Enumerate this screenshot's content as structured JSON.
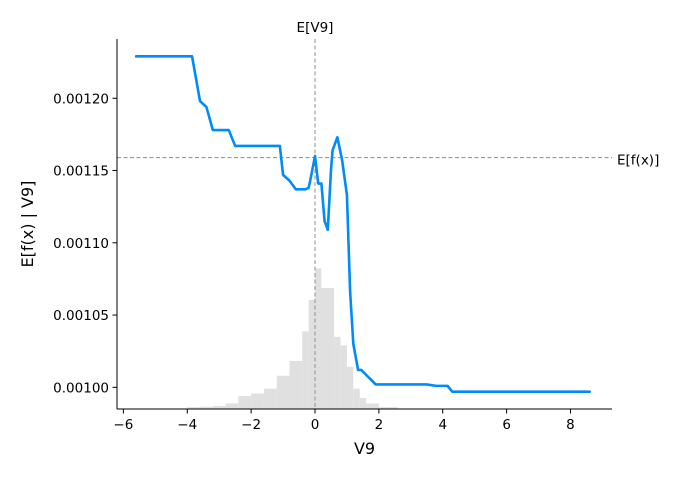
{
  "chart_data": {
    "type": "line",
    "xlabel": "V9",
    "ylabel": "E[f(x) | V9]",
    "xlim": [
      -6.2,
      9.3
    ],
    "ylim": [
      0.000985,
      0.001241
    ],
    "xticks": [
      -6,
      -4,
      -2,
      0,
      2,
      4,
      6,
      8
    ],
    "xtick_labels": [
      "−6",
      "−4",
      "−2",
      "0",
      "2",
      "4",
      "6",
      "8"
    ],
    "yticks": [
      0.001,
      0.00105,
      0.0011,
      0.00115,
      0.0012
    ],
    "ytick_labels": [
      "0.00100",
      "0.00105",
      "0.00110",
      "0.00115",
      "0.00120"
    ],
    "line_color": "#008bfb",
    "hist_color": "#e0e0e0",
    "ref_line_color": "#999999",
    "expected_x": {
      "label": "E[V9]",
      "value": 0.0
    },
    "expected_y": {
      "label": "E[f(x)]",
      "value": 0.001159
    },
    "series": [
      {
        "x": [
          -5.6,
          -3.85,
          -3.6,
          -3.4,
          -3.2,
          -2.7,
          -2.5,
          -2.0,
          -1.1,
          -1.0,
          -0.8,
          -0.6,
          -0.4,
          -0.3,
          -0.2,
          -0.15,
          0.0,
          0.1,
          0.2,
          0.3,
          0.4,
          0.5,
          0.55,
          0.7,
          0.85,
          1.0,
          1.1,
          1.2,
          1.35,
          1.45,
          1.9,
          3.5,
          3.8,
          4.15,
          4.3,
          8.6
        ],
        "y": [
          0.001229,
          0.001229,
          0.001198,
          0.001194,
          0.001178,
          0.001178,
          0.001167,
          0.001167,
          0.001167,
          0.001147,
          0.001143,
          0.001137,
          0.001137,
          0.001137,
          0.001138,
          0.001143,
          0.00116,
          0.001141,
          0.001141,
          0.001115,
          0.001109,
          0.00115,
          0.001164,
          0.001173,
          0.001157,
          0.001133,
          0.001066,
          0.00103,
          0.001012,
          0.001012,
          0.001002,
          0.001002,
          0.001001,
          0.001001,
          0.000997,
          0.000997
        ]
      }
    ],
    "histogram": {
      "bin_edges": [
        -4.0,
        -3.6,
        -3.2,
        -2.8,
        -2.4,
        -2.0,
        -1.6,
        -1.2,
        -0.8,
        -0.4,
        -0.2,
        0.0,
        0.2,
        0.6,
        0.8,
        1.0,
        1.2,
        1.4,
        1.6,
        2.0,
        2.6
      ],
      "heights": [
        0.0005,
        0.0006,
        0.0008,
        0.0015,
        0.0035,
        0.0042,
        0.0055,
        0.009,
        0.013,
        0.021,
        0.0295,
        0.038,
        0.0327,
        0.0195,
        0.0172,
        0.0114,
        0.0055,
        0.003,
        0.0015,
        0.0005
      ]
    }
  }
}
